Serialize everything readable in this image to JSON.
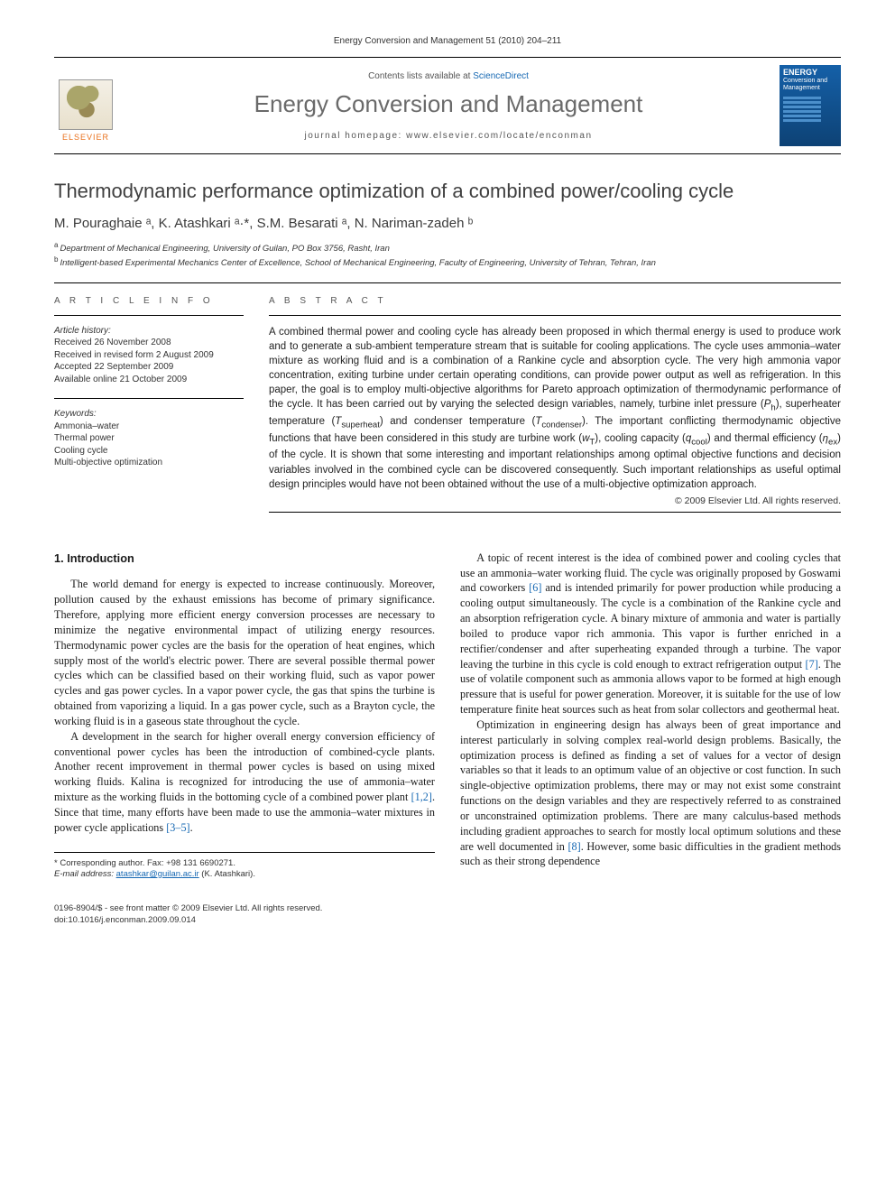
{
  "pageHeader": "Energy Conversion and Management 51 (2010) 204–211",
  "masthead": {
    "publisherLogoAlt": "Elsevier tree logo",
    "publisherName": "ELSEVIER",
    "contentsListsPrefix": "Contents lists available at ",
    "contentsListsLink": "ScienceDirect",
    "journalName": "Energy Conversion and Management",
    "homepageLabel": "journal homepage: www.elsevier.com/locate/enconman",
    "coverTitleLine1": "ENERGY",
    "coverTitleLine2": "Conversion and",
    "coverTitleLine3": "Management"
  },
  "article": {
    "title": "Thermodynamic performance optimization of a combined power/cooling cycle",
    "authors": "M. Pouraghaie ᵃ, K. Atashkari ᵃ·*, S.M. Besarati ᵃ, N. Nariman-zadeh ᵇ",
    "affiliations": [
      {
        "sup": "a",
        "text": "Department of Mechanical Engineering, University of Guilan, PO Box 3756, Rasht, Iran"
      },
      {
        "sup": "b",
        "text": "Intelligent-based Experimental Mechanics Center of Excellence, School of Mechanical Engineering, Faculty of Engineering, University of Tehran, Tehran, Iran"
      }
    ]
  },
  "info": {
    "sectionHead": "A R T I C L E   I N F O",
    "historyLabel": "Article history:",
    "history": [
      "Received 26 November 2008",
      "Received in revised form 2 August 2009",
      "Accepted 22 September 2009",
      "Available online 21 October 2009"
    ],
    "keywordsLabel": "Keywords:",
    "keywords": [
      "Ammonia–water",
      "Thermal power",
      "Cooling cycle",
      "Multi-objective optimization"
    ]
  },
  "abstract": {
    "sectionHead": "A B S T R A C T",
    "textHtml": "A combined thermal power and cooling cycle has already been proposed in which thermal energy is used to produce work and to generate a sub-ambient temperature stream that is suitable for cooling applications. The cycle uses ammonia–water mixture as working fluid and is a combination of a Rankine cycle and absorption cycle. The very high ammonia vapor concentration, exiting turbine under certain operating conditions, can provide power output as well as refrigeration. In this paper, the goal is to employ multi-objective algorithms for Pareto approach optimization of thermodynamic performance of the cycle. It has been carried out by varying the selected design variables, namely, turbine inlet pressure (<span class=\"sym\">P</span><sub>h</sub>), superheater temperature (<span class=\"sym\">T</span><sub>superheat</sub>) and condenser temperature (<span class=\"sym\">T</span><sub>condenser</sub>). The important conflicting thermodynamic objective functions that have been considered in this study are turbine work (<span class=\"sym\">w</span><sub>T</sub>), cooling capacity (<span class=\"sym\">q</span><sub>cool</sub>) and thermal efficiency (<span class=\"sym\">η</span><sub>ex</sub>) of the cycle. It is shown that some interesting and important relationships among optimal objective functions and decision variables involved in the combined cycle can be discovered consequently. Such important relationships as useful optimal design principles would have not been obtained without the use of a multi-objective optimization approach.",
    "copyright": "© 2009 Elsevier Ltd. All rights reserved."
  },
  "body": {
    "heading": "1. Introduction",
    "p1": "The world demand for energy is expected to increase continuously. Moreover, pollution caused by the exhaust emissions has become of primary significance. Therefore, applying more efficient energy conversion processes are necessary to minimize the negative environmental impact of utilizing energy resources. Thermodynamic power cycles are the basis for the operation of heat engines, which supply most of the world's electric power. There are several possible thermal power cycles which can be classified based on their working fluid, such as vapor power cycles and gas power cycles. In a vapor power cycle, the gas that spins the turbine is obtained from vaporizing a liquid. In a gas power cycle, such as a Brayton cycle, the working fluid is in a gaseous state throughout the cycle.",
    "p2Html": "A development in the search for higher overall energy conversion efficiency of conventional power cycles has been the introduction of combined-cycle plants. Another recent improvement in thermal power cycles is based on using mixed working fluids. Kalina is recognized for introducing the use of ammonia–water mixture as the working fluids in the bottoming cycle of a combined power plant <span class=\"ref\">[1,2]</span>. Since that time, many efforts have been made to use the ammonia–water mixtures in power cycle applications <span class=\"ref\">[3–5]</span>.",
    "p3Html": "A topic of recent interest is the idea of combined power and cooling cycles that use an ammonia–water working fluid. The cycle was originally proposed by Goswami and coworkers <span class=\"ref\">[6]</span> and is intended primarily for power production while producing a cooling output simultaneously. The cycle is a combination of the Rankine cycle and an absorption refrigeration cycle. A binary mixture of ammonia and water is partially boiled to produce vapor rich ammonia. This vapor is further enriched in a rectifier/condenser and after superheating expanded through a turbine. The vapor leaving the turbine in this cycle is cold enough to extract refrigeration output <span class=\"ref\">[7]</span>. The use of volatile component such as ammonia allows vapor to be formed at high enough pressure that is useful for power generation. Moreover, it is suitable for the use of low temperature finite heat sources such as heat from solar collectors and geothermal heat.",
    "p4Html": "Optimization in engineering design has always been of great importance and interest particularly in solving complex real-world design problems. Basically, the optimization process is defined as finding a set of values for a vector of design variables so that it leads to an optimum value of an objective or cost function. In such single-objective optimization problems, there may or may not exist some constraint functions on the design variables and they are respectively referred to as constrained or unconstrained optimization problems. There are many calculus-based methods including gradient approaches to search for mostly local optimum solutions and these are well documented in <span class=\"ref\">[8]</span>. However, some basic difficulties in the gradient methods such as their strong dependence"
  },
  "footnote": {
    "corresponding": "* Corresponding author. Fax: +98 131 6690271.",
    "emailLabel": "E-mail address:",
    "email": "atashkar@guilan.ac.ir",
    "emailSuffix": " (K. Atashkari)."
  },
  "footer": {
    "line1": "0196-8904/$ - see front matter © 2009 Elsevier Ltd. All rights reserved.",
    "line2": "doi:10.1016/j.enconman.2009.09.014"
  },
  "colors": {
    "linkBlue": "#1668b3",
    "elsevierOrange": "#E9711C",
    "grayText": "#6a6a6a"
  }
}
